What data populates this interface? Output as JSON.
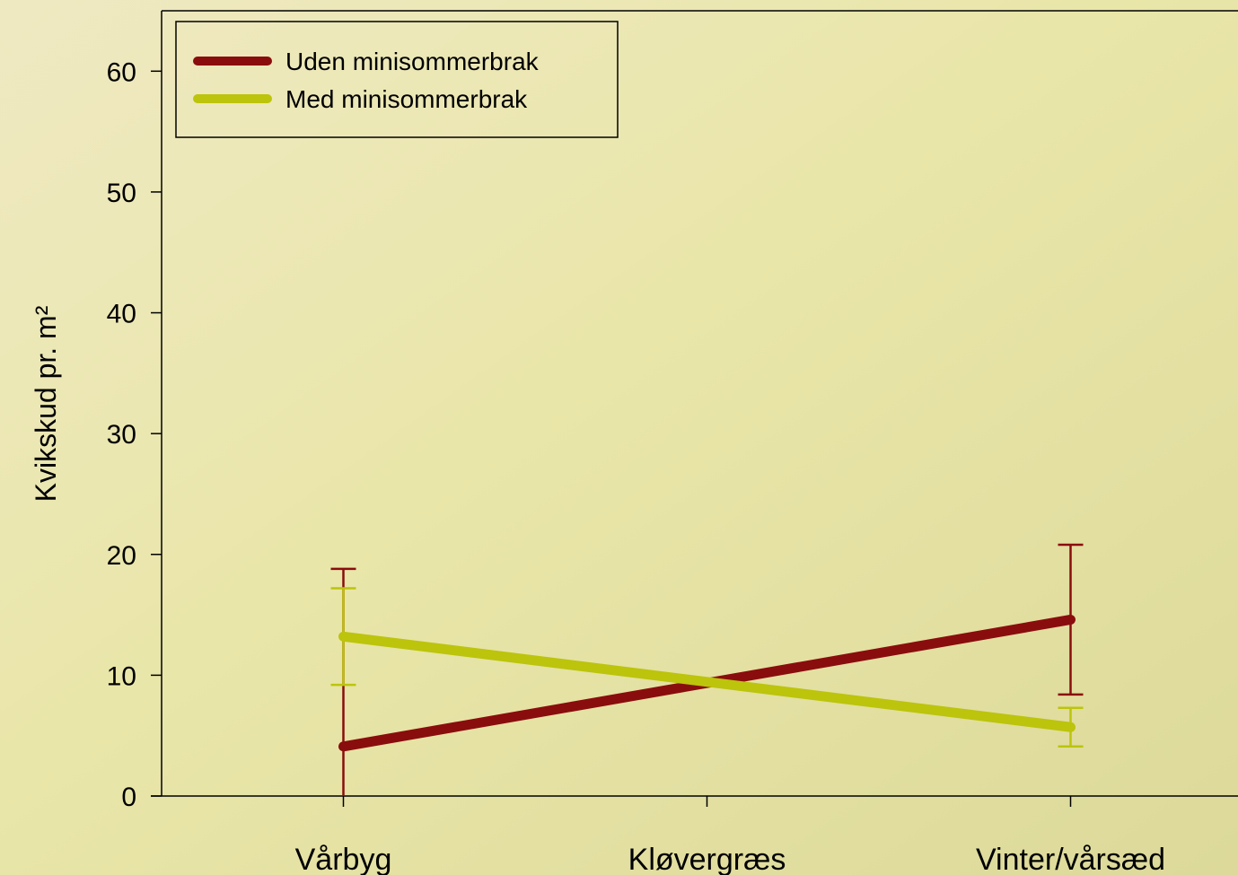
{
  "chart_data": {
    "type": "line",
    "y_label": "Kvikskud pr. m²",
    "categories": [
      "Vårbyg",
      "Kløvergræs",
      "Vinter/vårsæd"
    ],
    "connect_gaps": true,
    "series": [
      {
        "name": "Uden minisommerbrak",
        "color": "#8a0d0d",
        "values": [
          4.1,
          null,
          14.6
        ],
        "errors": [
          14.7,
          null,
          6.2
        ]
      },
      {
        "name": "Med minisommerbrak",
        "color": "#bcc40c",
        "values": [
          13.2,
          null,
          5.7
        ],
        "errors": [
          4.0,
          null,
          1.6
        ]
      }
    ],
    "ylim": [
      0,
      65
    ],
    "yticks": [
      0,
      10,
      20,
      30,
      40,
      50,
      60
    ],
    "legend": "upper-left"
  }
}
